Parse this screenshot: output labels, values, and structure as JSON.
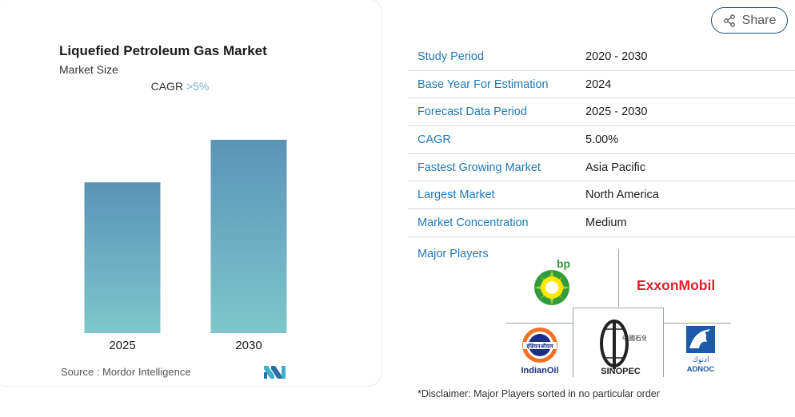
{
  "chart": {
    "title": "Liquefied Petroleum Gas Market",
    "subtitle": "Market Size",
    "cagr_label": "CAGR",
    "cagr_value": ">5%",
    "source": "Source :  Mordor Intelligence"
  },
  "chart_data": {
    "type": "bar",
    "title": "Liquefied Petroleum Gas Market",
    "subtitle": "Market Size",
    "categories": [
      "2025",
      "2030"
    ],
    "values": [
      0.78,
      1.0
    ],
    "xlabel": "",
    "ylabel": "",
    "ylim": [
      0,
      1
    ],
    "grid": false,
    "colors": {
      "top": "#5b93b8",
      "bottom": "#7dc7ca"
    }
  },
  "share": {
    "label": "Share"
  },
  "table": {
    "rows": [
      {
        "key": "Study Period",
        "value": "2020 - 2030"
      },
      {
        "key": "Base Year For Estimation",
        "value": "2024"
      },
      {
        "key": "Forecast Data Period",
        "value": "2025 - 2030"
      },
      {
        "key": "CAGR",
        "value": "5.00%"
      },
      {
        "key": "Fastest Growing Market",
        "value": "Asia Pacific"
      },
      {
        "key": "Largest Market",
        "value": "North America"
      },
      {
        "key": "Market Concentration",
        "value": "Medium"
      }
    ],
    "major_players_label": "Major Players"
  },
  "players": {
    "bp": "bp",
    "exxon": "ExxonMobil",
    "indianoil": "IndianOil",
    "indianoil_hindi": "इंडियनऑयल",
    "sinopec": "SINOPEC",
    "adnoc": "ADNOC",
    "adnoc_arabic": "ادنوك"
  },
  "disclaimer": "*Disclaimer: Major Players sorted in no particular order",
  "colors": {
    "accent": "#1f79b8",
    "share_border": "#1f4e78",
    "exxon_red": "#e4202e",
    "adnoc_blue": "#1a5aa8",
    "bp_green": "#2f9b3a",
    "indianoil_orange": "#f37022"
  }
}
